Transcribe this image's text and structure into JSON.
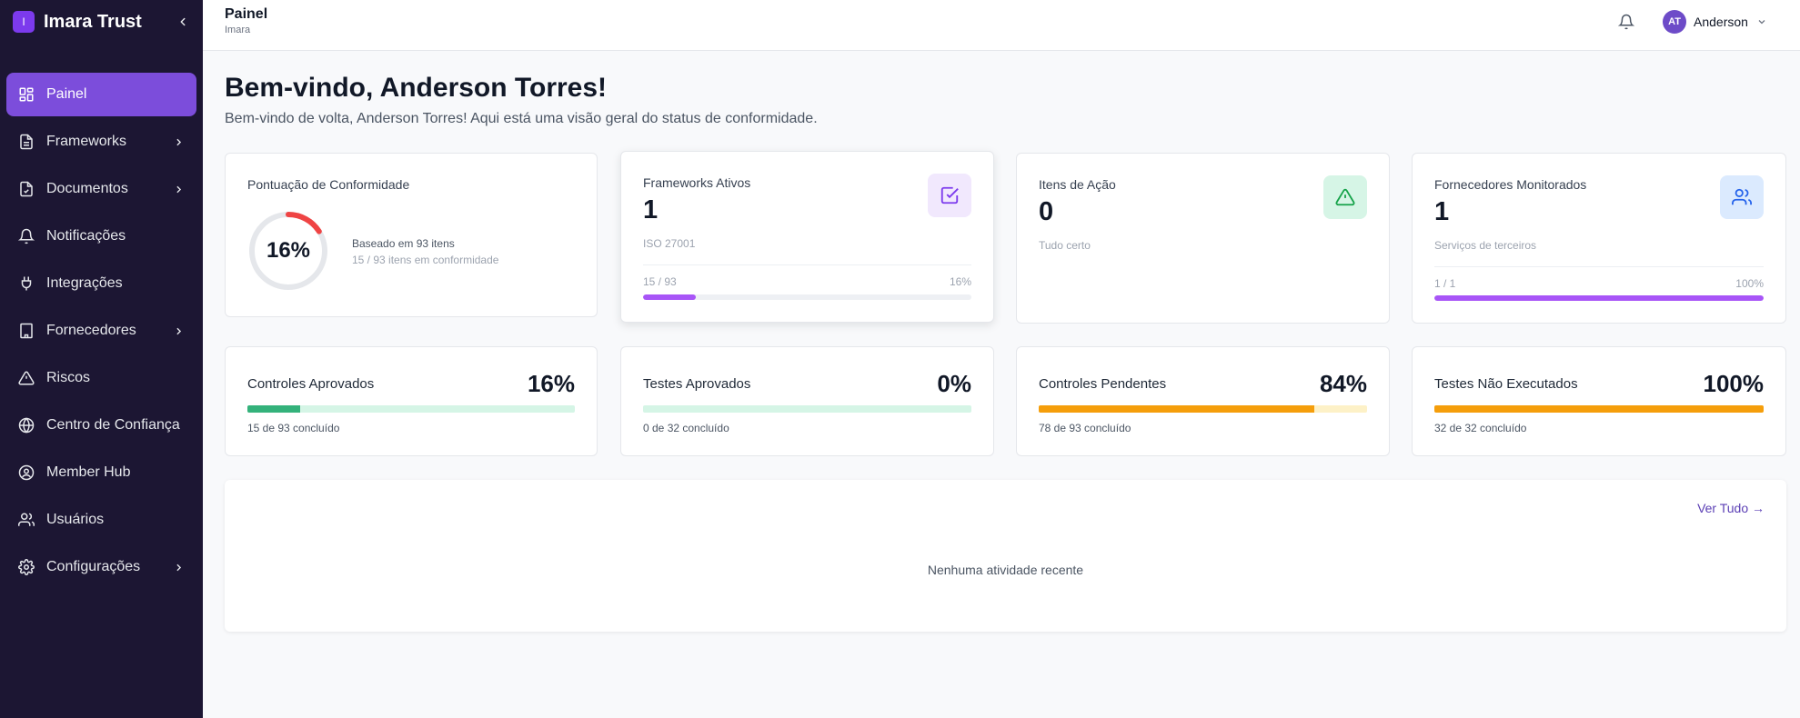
{
  "brand": {
    "logo_letter": "I",
    "name": "Imara Trust"
  },
  "sidebar": {
    "items": [
      {
        "label": "Painel",
        "icon": "grid-icon",
        "active": true,
        "has_submenu": false
      },
      {
        "label": "Frameworks",
        "icon": "file-text-icon",
        "has_submenu": true
      },
      {
        "label": "Documentos",
        "icon": "file-check-icon",
        "has_submenu": true
      },
      {
        "label": "Notificações",
        "icon": "bell-icon",
        "has_submenu": false
      },
      {
        "label": "Integrações",
        "icon": "plug-icon",
        "has_submenu": false
      },
      {
        "label": "Fornecedores",
        "icon": "building-icon",
        "has_submenu": true
      },
      {
        "label": "Riscos",
        "icon": "warning-icon",
        "has_submenu": false
      },
      {
        "label": "Centro de Confiança",
        "icon": "globe-icon",
        "has_submenu": false
      },
      {
        "label": "Member Hub",
        "icon": "user-circle-icon",
        "has_submenu": false
      },
      {
        "label": "Usuários",
        "icon": "users-icon",
        "has_submenu": false
      },
      {
        "label": "Configurações",
        "icon": "gear-icon",
        "has_submenu": true
      }
    ]
  },
  "header": {
    "title": "Painel",
    "subtitle": "Imara",
    "user": {
      "initials": "AT",
      "name": "Anderson"
    }
  },
  "main": {
    "welcome_title": "Bem-vindo, Anderson Torres!",
    "welcome_subtitle": "Bem-vindo de volta, Anderson Torres! Aqui está uma visão geral do status de conformidade.",
    "score_card": {
      "title": "Pontuação de Conformidade",
      "percent_label": "16%",
      "percent": 16,
      "basis": "Baseado em 93 itens",
      "detail": "15 / 93 itens em conformidade"
    },
    "frameworks_card": {
      "title": "Frameworks Ativos",
      "value": "1",
      "sub": "ISO 27001",
      "progress_left": "15 / 93",
      "progress_right": "16%",
      "progress": 16
    },
    "actions_card": {
      "title": "Itens de Ação",
      "value": "0",
      "sub": "Tudo certo"
    },
    "vendors_card": {
      "title": "Fornecedores Monitorados",
      "value": "1",
      "sub": "Serviços de terceiros",
      "progress_left": "1 / 1",
      "progress_right": "100%",
      "progress": 100
    },
    "stats": [
      {
        "title": "Controles Aprovados",
        "value": "16%",
        "sub": "15 de 93 concluído",
        "progress": 16,
        "fill": "#34b27b",
        "track": "#d5f5e6"
      },
      {
        "title": "Testes Aprovados",
        "value": "0%",
        "sub": "0 de 32 concluído",
        "progress": 0,
        "fill": "#34b27b",
        "track": "#d5f5e6"
      },
      {
        "title": "Controles Pendentes",
        "value": "84%",
        "sub": "78 de 93 concluído",
        "progress": 84,
        "fill": "#f59e0b",
        "track": "#fdf1c7"
      },
      {
        "title": "Testes Não Executados",
        "value": "100%",
        "sub": "32 de 32 concluído",
        "progress": 100,
        "fill": "#f59e0b",
        "track": "#fdf1c7"
      }
    ],
    "activity": {
      "see_all": "Ver Tudo →",
      "empty": "Nenhuma atividade recente"
    }
  },
  "colors": {
    "sidebar_bg": "#1c1633",
    "accent": "#7c4ddb",
    "progress_purple": "#a855f7",
    "donut_red": "#ef4444"
  }
}
